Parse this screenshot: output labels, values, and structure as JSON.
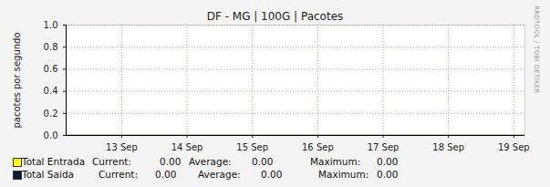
{
  "chart_data": {
    "type": "line",
    "title": "DF - MG | 100G | Pacotes",
    "y_label": "pacotes por segundo",
    "watermark": "RRDTOOL / TOBI OETIKER",
    "x": [
      12.15,
      13,
      14,
      15,
      16,
      17,
      18,
      19,
      19.17
    ],
    "xlim": [
      12.15,
      19.17
    ],
    "xticks": [
      {
        "value": 13,
        "label": "13 Sep"
      },
      {
        "value": 14,
        "label": "14 Sep"
      },
      {
        "value": 15,
        "label": "15 Sep"
      },
      {
        "value": 16,
        "label": "16 Sep"
      },
      {
        "value": 17,
        "label": "17 Sep"
      },
      {
        "value": 18,
        "label": "18 Sep"
      },
      {
        "value": 19,
        "label": "19 Sep"
      }
    ],
    "ylim": [
      0,
      1
    ],
    "yticks": [
      {
        "value": 0,
        "label": "0.0"
      },
      {
        "value": 0.2,
        "label": "0.2"
      },
      {
        "value": 0.4,
        "label": "0.4"
      },
      {
        "value": 0.6,
        "label": "0.6"
      },
      {
        "value": 0.8,
        "label": "0.8"
      },
      {
        "value": 1,
        "label": "1.0"
      }
    ],
    "grid": true,
    "stats_labels": [
      "Current:",
      "Average:",
      "Maximum:"
    ],
    "series": [
      {
        "name": "Total Entrada",
        "color": "#ffff00",
        "values": [
          0,
          0,
          0,
          0,
          0,
          0,
          0,
          0,
          0
        ],
        "stats": [
          {
            "value": 0,
            "label": "0.00"
          },
          {
            "value": 0,
            "label": "0.00"
          },
          {
            "value": 0,
            "label": "0.00"
          }
        ]
      },
      {
        "name": "Total Saida",
        "color": "#0b1a3a",
        "values": [
          0,
          0,
          0,
          0,
          0,
          0,
          0,
          0,
          0
        ],
        "stats": [
          {
            "value": 0,
            "label": "0.00"
          },
          {
            "value": 0,
            "label": "0.00"
          },
          {
            "value": 0,
            "label": "0.00"
          }
        ]
      }
    ]
  }
}
